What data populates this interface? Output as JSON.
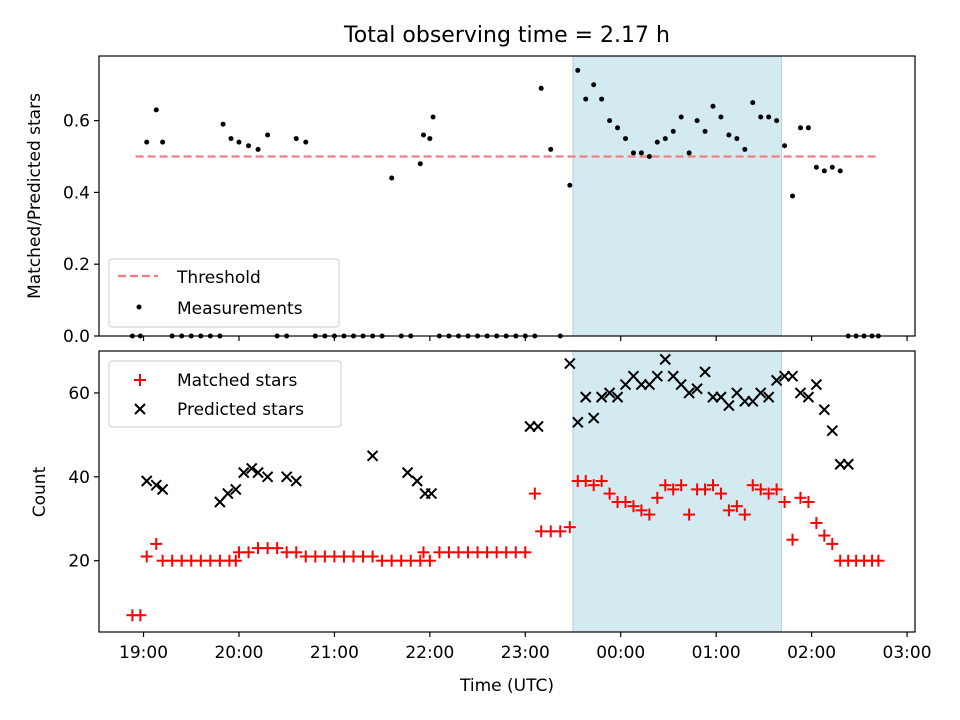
{
  "figure": {
    "title": "Total observing time = 2.17 h",
    "xlabel": "Time (UTC)",
    "x_ticks": [
      "19:00",
      "20:00",
      "21:00",
      "22:00",
      "23:00",
      "00:00",
      "01:00",
      "02:00",
      "03:00"
    ]
  },
  "chart_data": [
    {
      "type": "scatter",
      "ylabel": "Matched/Predicted stars",
      "ylim": [
        0,
        0.78
      ],
      "yticks": [
        "0.0",
        "0.2",
        "0.4",
        "0.6"
      ],
      "xlim": [
        "18:32",
        "03:05"
      ],
      "shaded_span": [
        "23:30",
        "01:41"
      ],
      "shaded_color": "#d3eaf0",
      "legend_position": "lower-left",
      "threshold": {
        "name": "Threshold",
        "value": 0.5,
        "x_range": [
          "18:55",
          "02:41"
        ],
        "color": "#f08080",
        "style": "dashed"
      },
      "series": [
        {
          "name": "Measurements",
          "color": "#000000",
          "marker": "dot",
          "x": [
            "18:53",
            "18:58",
            "19:02",
            "19:08",
            "19:12",
            "19:18",
            "19:24",
            "19:30",
            "19:36",
            "19:42",
            "19:48",
            "19:50",
            "19:55",
            "20:00",
            "20:06",
            "20:12",
            "20:18",
            "20:24",
            "20:30",
            "20:36",
            "20:42",
            "20:48",
            "20:54",
            "21:00",
            "21:06",
            "21:12",
            "21:18",
            "21:24",
            "21:30",
            "21:36",
            "21:42",
            "21:48",
            "21:54",
            "21:56",
            "22:00",
            "22:02",
            "22:06",
            "22:12",
            "22:18",
            "22:24",
            "22:30",
            "22:36",
            "22:42",
            "22:48",
            "22:54",
            "23:00",
            "23:06",
            "23:10",
            "23:16",
            "23:22",
            "23:28",
            "23:33",
            "23:38",
            "23:43",
            "23:48",
            "23:53",
            "23:58",
            "00:03",
            "00:08",
            "00:13",
            "00:18",
            "00:23",
            "00:28",
            "00:33",
            "00:38",
            "00:43",
            "00:48",
            "00:53",
            "00:58",
            "01:03",
            "01:08",
            "01:13",
            "01:18",
            "01:23",
            "01:28",
            "01:33",
            "01:38",
            "01:43",
            "01:48",
            "01:53",
            "01:58",
            "02:03",
            "02:08",
            "02:13",
            "02:18",
            "02:23",
            "02:28",
            "02:33",
            "02:38",
            "02:42"
          ],
          "y": [
            0,
            0,
            0.54,
            0.63,
            0.54,
            0,
            0,
            0,
            0,
            0,
            0,
            0.59,
            0.55,
            0.54,
            0.53,
            0.52,
            0.56,
            0,
            0,
            0.55,
            0.54,
            0,
            0,
            0,
            0,
            0,
            0,
            0,
            0,
            0.44,
            0,
            0,
            0.48,
            0.56,
            0.55,
            0.61,
            0,
            0,
            0,
            0,
            0,
            0,
            0,
            0,
            0,
            0,
            0,
            0.69,
            0.52,
            0,
            0.42,
            0.74,
            0.66,
            0.7,
            0.66,
            0.6,
            0.58,
            0.55,
            0.51,
            0.51,
            0.5,
            0.54,
            0.55,
            0.57,
            0.61,
            0.51,
            0.6,
            0.57,
            0.64,
            0.61,
            0.56,
            0.55,
            0.52,
            0.65,
            0.61,
            0.61,
            0.6,
            0.53,
            0.39,
            0.58,
            0.58,
            0.47,
            0.46,
            0.47,
            0.46,
            0,
            0,
            0,
            0,
            0
          ]
        }
      ]
    },
    {
      "type": "scatter",
      "ylabel": "Count",
      "ylim": [
        3,
        70
      ],
      "yticks": [
        "20",
        "40",
        "60"
      ],
      "xlim": [
        "18:32",
        "03:05"
      ],
      "shaded_span": [
        "23:30",
        "01:41"
      ],
      "shaded_color": "#d3eaf0",
      "legend_position": "upper-left",
      "series": [
        {
          "name": "Matched stars",
          "color": "#ff0000",
          "marker": "plus",
          "x": [
            "18:53",
            "18:58",
            "19:02",
            "19:08",
            "19:12",
            "19:18",
            "19:24",
            "19:30",
            "19:36",
            "19:42",
            "19:48",
            "19:54",
            "19:58",
            "20:00",
            "20:06",
            "20:12",
            "20:18",
            "20:24",
            "20:30",
            "20:36",
            "20:42",
            "20:48",
            "20:54",
            "21:00",
            "21:06",
            "21:12",
            "21:18",
            "21:24",
            "21:30",
            "21:36",
            "21:42",
            "21:48",
            "21:54",
            "21:56",
            "22:00",
            "22:06",
            "22:12",
            "22:18",
            "22:24",
            "22:30",
            "22:36",
            "22:42",
            "22:48",
            "22:54",
            "23:00",
            "23:06",
            "23:10",
            "23:16",
            "23:22",
            "23:28",
            "23:33",
            "23:38",
            "23:43",
            "23:48",
            "23:53",
            "23:58",
            "00:03",
            "00:08",
            "00:13",
            "00:18",
            "00:23",
            "00:28",
            "00:33",
            "00:38",
            "00:43",
            "00:48",
            "00:53",
            "00:58",
            "01:03",
            "01:08",
            "01:13",
            "01:18",
            "01:23",
            "01:28",
            "01:33",
            "01:38",
            "01:43",
            "01:48",
            "01:53",
            "01:58",
            "02:03",
            "02:08",
            "02:13",
            "02:18",
            "02:23",
            "02:28",
            "02:33",
            "02:38",
            "02:42"
          ],
          "y": [
            7,
            7,
            21,
            24,
            20,
            20,
            20,
            20,
            20,
            20,
            20,
            20,
            20,
            22,
            22,
            23,
            23,
            23,
            22,
            22,
            21,
            21,
            21,
            21,
            21,
            21,
            21,
            21,
            20,
            20,
            20,
            20,
            20,
            22,
            20,
            22,
            22,
            22,
            22,
            22,
            22,
            22,
            22,
            22,
            22,
            36,
            27,
            27,
            27,
            28,
            39,
            39,
            38,
            39,
            36,
            34,
            34,
            33,
            32,
            31,
            35,
            38,
            37,
            38,
            31,
            37,
            37,
            38,
            36,
            32,
            33,
            31,
            38,
            37,
            36,
            37,
            34,
            25,
            35,
            34,
            29,
            26,
            24,
            20,
            20,
            20,
            20,
            20,
            20
          ]
        },
        {
          "name": "Predicted stars",
          "color": "#000000",
          "marker": "cross",
          "x": [
            "19:02",
            "19:08",
            "19:12",
            "19:48",
            "19:53",
            "19:58",
            "20:03",
            "20:08",
            "20:12",
            "20:18",
            "20:30",
            "20:36",
            "21:24",
            "21:46",
            "21:52",
            "21:57",
            "22:01",
            "23:03",
            "23:08",
            "23:28",
            "23:33",
            "23:38",
            "23:43",
            "23:48",
            "23:53",
            "23:58",
            "00:03",
            "00:08",
            "00:13",
            "00:18",
            "00:23",
            "00:28",
            "00:33",
            "00:38",
            "00:43",
            "00:48",
            "00:53",
            "00:58",
            "01:03",
            "01:08",
            "01:13",
            "01:18",
            "01:23",
            "01:28",
            "01:33",
            "01:38",
            "01:43",
            "01:48",
            "01:53",
            "01:58",
            "02:03",
            "02:08",
            "02:13",
            "02:18",
            "02:23"
          ],
          "y": [
            39,
            38,
            37,
            34,
            36,
            37,
            41,
            42,
            41,
            40,
            40,
            39,
            45,
            41,
            39,
            36,
            36,
            52,
            52,
            67,
            53,
            59,
            54,
            59,
            60,
            59,
            62,
            64,
            62,
            62,
            64,
            68,
            64,
            62,
            60,
            61,
            65,
            59,
            59,
            57,
            60,
            58,
            58,
            60,
            59,
            63,
            64,
            64,
            60,
            59,
            62,
            56,
            51,
            43,
            43
          ]
        }
      ]
    }
  ]
}
